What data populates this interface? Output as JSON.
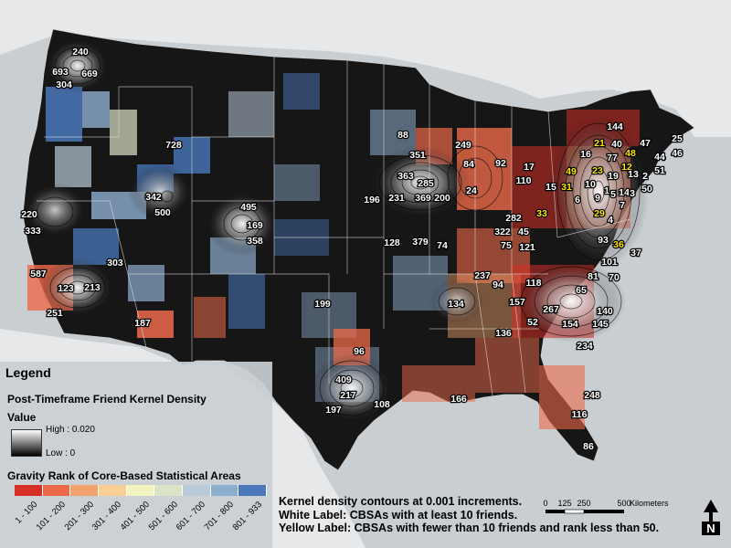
{
  "legend": {
    "title": "Legend",
    "kernel_density_title": "Post-Timeframe Friend Kernel Density",
    "value_label": "Value",
    "high_label": "High : 0.020",
    "low_label": "Low : 0",
    "gravity_title": "Gravity Rank of Core-Based Statistical Areas",
    "gravity_classes": [
      {
        "label": "1 - 100",
        "color": "#d73027"
      },
      {
        "label": "101 - 200",
        "color": "#ec6a4a"
      },
      {
        "label": "201 - 300",
        "color": "#f4a26d"
      },
      {
        "label": "301 - 400",
        "color": "#f9cf93"
      },
      {
        "label": "401 - 500",
        "color": "#f4f4bf"
      },
      {
        "label": "501 - 600",
        "color": "#dbe4c6"
      },
      {
        "label": "601 - 700",
        "color": "#b9cbd8"
      },
      {
        "label": "701 - 800",
        "color": "#8eaed0"
      },
      {
        "label": "801 - 933",
        "color": "#4a78bb"
      }
    ]
  },
  "notes": {
    "contours": "Kernel density contours at 0.001 increments.",
    "white_label": "White Label: CBSAs with at least 10 friends.",
    "yellow_label": "Yellow Label: CBSAs with fewer than 10 friends and rank less than 50."
  },
  "scale_bar": {
    "unit": "Kilometers",
    "ticks": [
      "0",
      "125",
      "250",
      "500"
    ]
  },
  "north_arrow": {
    "label": "N"
  },
  "colors": {
    "background": "#c9ced3",
    "land": "#1a1a1a",
    "white_label": "#ffffff",
    "yellow_label": "#ffe600"
  },
  "cbsa_labels": [
    {
      "text": "240",
      "color": "white"
    },
    {
      "text": "693",
      "color": "white"
    },
    {
      "text": "669",
      "color": "white"
    },
    {
      "text": "304",
      "color": "white"
    },
    {
      "text": "728",
      "color": "white"
    },
    {
      "text": "342",
      "color": "white"
    },
    {
      "text": "500",
      "color": "white"
    },
    {
      "text": "495",
      "color": "white"
    },
    {
      "text": "169",
      "color": "white"
    },
    {
      "text": "358",
      "color": "white"
    },
    {
      "text": "220",
      "color": "white"
    },
    {
      "text": "333",
      "color": "white"
    },
    {
      "text": "587",
      "color": "white"
    },
    {
      "text": "123",
      "color": "white"
    },
    {
      "text": "213",
      "color": "white"
    },
    {
      "text": "251",
      "color": "white"
    },
    {
      "text": "303",
      "color": "white"
    },
    {
      "text": "187",
      "color": "white"
    },
    {
      "text": "88",
      "color": "white"
    },
    {
      "text": "351",
      "color": "white"
    },
    {
      "text": "249",
      "color": "white"
    },
    {
      "text": "84",
      "color": "white"
    },
    {
      "text": "92",
      "color": "white"
    },
    {
      "text": "17",
      "color": "white"
    },
    {
      "text": "363",
      "color": "white"
    },
    {
      "text": "285",
      "color": "white"
    },
    {
      "text": "110",
      "color": "white"
    },
    {
      "text": "196",
      "color": "white"
    },
    {
      "text": "231",
      "color": "white"
    },
    {
      "text": "369",
      "color": "white"
    },
    {
      "text": "200",
      "color": "white"
    },
    {
      "text": "24",
      "color": "white"
    },
    {
      "text": "15",
      "color": "white"
    },
    {
      "text": "31",
      "color": "yellow"
    },
    {
      "text": "33",
      "color": "yellow"
    },
    {
      "text": "282",
      "color": "white"
    },
    {
      "text": "322",
      "color": "white"
    },
    {
      "text": "45",
      "color": "white"
    },
    {
      "text": "128",
      "color": "white"
    },
    {
      "text": "379",
      "color": "white"
    },
    {
      "text": "74",
      "color": "white"
    },
    {
      "text": "75",
      "color": "white"
    },
    {
      "text": "121",
      "color": "white"
    },
    {
      "text": "144",
      "color": "white"
    },
    {
      "text": "21",
      "color": "yellow"
    },
    {
      "text": "40",
      "color": "white"
    },
    {
      "text": "47",
      "color": "white"
    },
    {
      "text": "25",
      "color": "white"
    },
    {
      "text": "16",
      "color": "white"
    },
    {
      "text": "77",
      "color": "white"
    },
    {
      "text": "48",
      "color": "yellow"
    },
    {
      "text": "12",
      "color": "yellow"
    },
    {
      "text": "44",
      "color": "white"
    },
    {
      "text": "46",
      "color": "white"
    },
    {
      "text": "49",
      "color": "yellow"
    },
    {
      "text": "23",
      "color": "yellow"
    },
    {
      "text": "19",
      "color": "white"
    },
    {
      "text": "13",
      "color": "white"
    },
    {
      "text": "51",
      "color": "white"
    },
    {
      "text": "2",
      "color": "white"
    },
    {
      "text": "10",
      "color": "white"
    },
    {
      "text": "1",
      "color": "white"
    },
    {
      "text": "50",
      "color": "white"
    },
    {
      "text": "9",
      "color": "white"
    },
    {
      "text": "5",
      "color": "white"
    },
    {
      "text": "14",
      "color": "white"
    },
    {
      "text": "3",
      "color": "white"
    },
    {
      "text": "6",
      "color": "white"
    },
    {
      "text": "7",
      "color": "white"
    },
    {
      "text": "29",
      "color": "yellow"
    },
    {
      "text": "4",
      "color": "white"
    },
    {
      "text": "93",
      "color": "white"
    },
    {
      "text": "36",
      "color": "yellow"
    },
    {
      "text": "37",
      "color": "white"
    },
    {
      "text": "237",
      "color": "white"
    },
    {
      "text": "101",
      "color": "white"
    },
    {
      "text": "199",
      "color": "white"
    },
    {
      "text": "94",
      "color": "white"
    },
    {
      "text": "118",
      "color": "white"
    },
    {
      "text": "81",
      "color": "white"
    },
    {
      "text": "70",
      "color": "white"
    },
    {
      "text": "65",
      "color": "white"
    },
    {
      "text": "134",
      "color": "white"
    },
    {
      "text": "157",
      "color": "white"
    },
    {
      "text": "267",
      "color": "white"
    },
    {
      "text": "140",
      "color": "white"
    },
    {
      "text": "52",
      "color": "white"
    },
    {
      "text": "154",
      "color": "white"
    },
    {
      "text": "145",
      "color": "white"
    },
    {
      "text": "136",
      "color": "white"
    },
    {
      "text": "234",
      "color": "white"
    },
    {
      "text": "96",
      "color": "white"
    },
    {
      "text": "409",
      "color": "white"
    },
    {
      "text": "217",
      "color": "white"
    },
    {
      "text": "197",
      "color": "white"
    },
    {
      "text": "108",
      "color": "white"
    },
    {
      "text": "166",
      "color": "white"
    },
    {
      "text": "248",
      "color": "white"
    },
    {
      "text": "116",
      "color": "white"
    },
    {
      "text": "86",
      "color": "white"
    }
  ]
}
